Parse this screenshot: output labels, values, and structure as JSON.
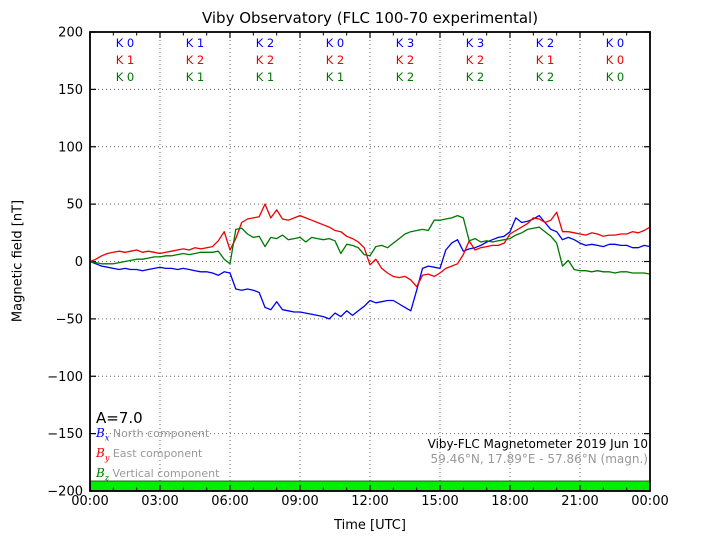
{
  "title": "Viby Observatory (FLC 100-70 experimental)",
  "axes": {
    "xlabel": "Time [UTC]",
    "ylabel": "Magnetic field [nT]",
    "x_tick_labels": [
      "00:00",
      "03:00",
      "06:00",
      "09:00",
      "12:00",
      "15:00",
      "18:00",
      "21:00",
      "00:00"
    ],
    "x_tick_hours": [
      0,
      3,
      6,
      9,
      12,
      15,
      18,
      21,
      24
    ],
    "x_minor_tick_hours": [
      1,
      2,
      4,
      5,
      7,
      8,
      10,
      11,
      13,
      14,
      16,
      17,
      19,
      20,
      22,
      23
    ],
    "y_tick_labels": [
      "200",
      "150",
      "100",
      "50",
      "0",
      "−50",
      "−100",
      "−150",
      "−200"
    ],
    "y_tick_values": [
      200,
      150,
      100,
      50,
      0,
      -50,
      -100,
      -150,
      -200
    ],
    "xlim_hours": [
      0,
      24
    ],
    "ylim": [
      -200,
      200
    ],
    "grid": "dotted"
  },
  "chart_data": {
    "type": "line",
    "title": "Viby Observatory (FLC 100-70 experimental)",
    "xlabel": "Time [UTC]",
    "ylabel": "Magnetic field [nT]",
    "ylim": [
      -200,
      200
    ],
    "x_unit": "hours UTC",
    "x_start": 0,
    "x_step": 0.25,
    "series": [
      {
        "name": "Bx North component",
        "color": "#0000ee",
        "values": [
          0,
          -2,
          -4,
          -5,
          -6,
          -7,
          -6,
          -7,
          -7,
          -8,
          -7,
          -6,
          -5,
          -6,
          -6,
          -7,
          -6,
          -7,
          -8,
          -9,
          -9,
          -10,
          -12,
          -9,
          -10,
          -24,
          -25,
          -24,
          -25,
          -27,
          -40,
          -42,
          -35,
          -42,
          -43,
          -44,
          -44,
          -45,
          -46,
          -47,
          -48,
          -50,
          -45,
          -48,
          -43,
          -47,
          -43,
          -39,
          -34,
          -36,
          -35,
          -34,
          -34,
          -37,
          -40,
          -43,
          -25,
          -6,
          -4,
          -5,
          -6,
          10,
          16,
          19,
          9,
          11,
          12,
          14,
          17,
          19,
          21,
          22,
          26,
          38,
          34,
          35,
          37,
          40,
          34,
          28,
          26,
          19,
          21,
          19,
          16,
          14,
          15,
          14,
          13,
          15,
          15,
          14,
          14,
          12,
          12,
          14,
          13
        ]
      },
      {
        "name": "By East component",
        "color": "#ee0000",
        "values": [
          0,
          2,
          5,
          7,
          8,
          9,
          8,
          9,
          10,
          8,
          9,
          8,
          7,
          8,
          9,
          10,
          11,
          10,
          12,
          11,
          12,
          13,
          18,
          26,
          10,
          20,
          34,
          37,
          38,
          39,
          50,
          38,
          45,
          37,
          36,
          38,
          40,
          38,
          36,
          34,
          32,
          30,
          27,
          26,
          22,
          20,
          17,
          12,
          -3,
          2,
          -6,
          -10,
          -13,
          -14,
          -13,
          -16,
          -22,
          -12,
          -11,
          -13,
          -10,
          -6,
          -4,
          -2,
          6,
          18,
          10,
          12,
          13,
          14,
          14,
          16,
          24,
          27,
          30,
          33,
          38,
          37,
          34,
          36,
          43,
          26,
          26,
          25,
          24,
          23,
          25,
          24,
          22,
          23,
          23,
          24,
          24,
          26,
          25,
          27,
          30
        ]
      },
      {
        "name": "Bz Vertical component",
        "color": "#007700",
        "values": [
          0,
          -1,
          -2,
          -2,
          -2,
          -1,
          0,
          1,
          2,
          2,
          3,
          4,
          4,
          5,
          5,
          6,
          7,
          6,
          7,
          8,
          8,
          8,
          9,
          2,
          -2,
          28,
          29,
          24,
          21,
          22,
          13,
          21,
          20,
          23,
          19,
          20,
          21,
          17,
          21,
          20,
          19,
          20,
          18,
          7,
          15,
          14,
          12,
          6,
          5,
          13,
          14,
          12,
          16,
          20,
          24,
          26,
          27,
          28,
          27,
          36,
          36,
          37,
          38,
          40,
          38,
          18,
          20,
          17,
          18,
          17,
          18,
          19,
          20,
          23,
          25,
          28,
          29,
          30,
          26,
          22,
          16,
          -4,
          1,
          -7,
          -8,
          -8,
          -9,
          -8,
          -9,
          -9,
          -10,
          -9,
          -9,
          -10,
          -10,
          -10,
          -11
        ]
      }
    ],
    "k_label_prefix": "K",
    "k_index_rows": [
      {
        "series": "Bx",
        "color": "#0000ee",
        "values": [
          0,
          1,
          2,
          0,
          3,
          3,
          2,
          0
        ]
      },
      {
        "series": "By",
        "color": "#ee0000",
        "values": [
          1,
          2,
          2,
          2,
          2,
          2,
          1,
          0
        ]
      },
      {
        "series": "Bz",
        "color": "#007700",
        "values": [
          0,
          1,
          1,
          1,
          2,
          2,
          2,
          0
        ]
      }
    ]
  },
  "annotation": {
    "a_index": "A=7.0"
  },
  "legend": [
    {
      "symbol_base": "B",
      "symbol_sub": "x",
      "label": "North component",
      "color": "#0000ee"
    },
    {
      "symbol_base": "B",
      "symbol_sub": "y",
      "label": "East component",
      "color": "#ee0000"
    },
    {
      "symbol_base": "B",
      "symbol_sub": "z",
      "label": "Vertical component",
      "color": "#007700"
    }
  ],
  "footer": {
    "line1": "Viby-FLC Magnetometer 2019 Jun 10",
    "line2": "59.46°N, 17.89°E - 57.86°N (magn.)"
  },
  "status_bar": {
    "color": "#00ee00"
  }
}
